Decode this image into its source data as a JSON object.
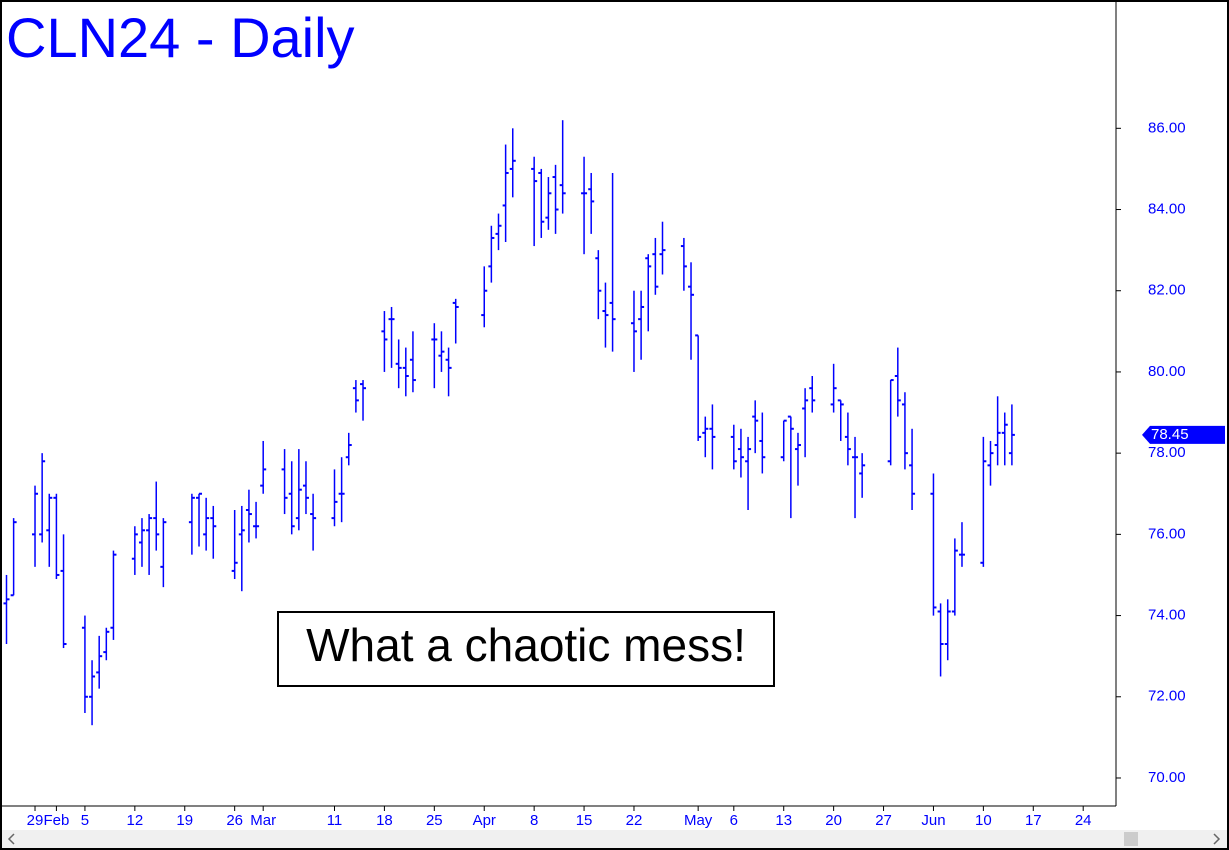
{
  "chart_data": {
    "type": "ohlc",
    "title": "CLN24 - Daily",
    "annotation": "What a chaotic mess!",
    "color": "#0000ff",
    "x": [
      -4,
      -3,
      0,
      1,
      2,
      3,
      4,
      7,
      8,
      9,
      10,
      11,
      14,
      15,
      16,
      17,
      18,
      22,
      23,
      24,
      25,
      28,
      29,
      30,
      31,
      32,
      35,
      36,
      37,
      38,
      39,
      42,
      43,
      44,
      45,
      46,
      49,
      50,
      51,
      52,
      53,
      56,
      57,
      58,
      59,
      63,
      64,
      65,
      66,
      67,
      70,
      71,
      72,
      73,
      74,
      77,
      78,
      79,
      80,
      81,
      84,
      85,
      86,
      87,
      88,
      91,
      92,
      93,
      94,
      95,
      98,
      99,
      100,
      101,
      102,
      105,
      106,
      107,
      108,
      109,
      112,
      113,
      114,
      115,
      116,
      120,
      121,
      122,
      123,
      126,
      127,
      128,
      129,
      130,
      133,
      134,
      135,
      136,
      137
    ],
    "open": [
      74.3,
      74.5,
      76.0,
      76.0,
      76.1,
      76.9,
      75.1,
      73.7,
      72.0,
      72.6,
      73.1,
      73.7,
      75.4,
      75.8,
      76.1,
      76.4,
      75.2,
      76.3,
      76.9,
      76.0,
      76.4,
      75.1,
      76.0,
      76.6,
      76.2,
      77.2,
      77.6,
      77.0,
      76.4,
      77.2,
      76.5,
      76.4,
      77.0,
      77.9,
      79.6,
      79.7,
      81.0,
      81.3,
      80.2,
      80.1,
      80.3,
      80.8,
      80.4,
      80.3,
      81.7,
      81.4,
      82.6,
      83.4,
      84.1,
      85.0,
      85.0,
      84.9,
      83.8,
      84.8,
      84.6,
      84.4,
      84.5,
      82.8,
      81.5,
      81.7,
      81.2,
      81.3,
      82.8,
      82.9,
      82.9,
      83.1,
      82.1,
      80.9,
      78.5,
      78.6,
      78.4,
      78.1,
      77.8,
      78.9,
      78.3,
      77.9,
      78.9,
      78.1,
      79.1,
      79.6,
      79.2,
      79.3,
      78.4,
      77.9,
      77.5,
      77.8,
      79.9,
      79.2,
      77.7,
      77.0,
      74.1,
      73.3,
      74.1,
      75.5,
      75.3,
      77.7,
      78.2,
      78.5,
      78.0
    ],
    "high": [
      75.0,
      76.4,
      77.2,
      78.0,
      77.0,
      77.0,
      76.0,
      74.0,
      72.9,
      73.5,
      73.7,
      75.6,
      76.2,
      76.4,
      76.5,
      77.3,
      76.4,
      77.0,
      77.0,
      76.9,
      76.7,
      76.6,
      76.7,
      77.1,
      76.8,
      78.3,
      78.1,
      77.8,
      78.1,
      77.8,
      77.0,
      77.6,
      77.9,
      78.5,
      79.8,
      79.8,
      81.5,
      81.6,
      80.8,
      80.6,
      81.0,
      81.2,
      81.0,
      80.6,
      81.8,
      82.6,
      83.6,
      83.9,
      85.6,
      86.0,
      85.3,
      85.0,
      84.8,
      85.1,
      86.2,
      85.3,
      84.9,
      83.0,
      82.2,
      84.9,
      82.0,
      82.0,
      82.9,
      83.3,
      83.7,
      83.3,
      82.7,
      80.9,
      78.9,
      79.2,
      78.7,
      78.6,
      78.4,
      79.3,
      79.0,
      78.8,
      78.9,
      78.5,
      79.6,
      79.9,
      80.2,
      79.3,
      79.0,
      78.4,
      78.0,
      79.8,
      80.6,
      79.5,
      78.6,
      77.5,
      74.3,
      74.4,
      75.9,
      76.3,
      78.4,
      78.3,
      79.4,
      79.0,
      79.2
    ],
    "low": [
      73.3,
      74.5,
      75.2,
      75.8,
      75.2,
      74.9,
      73.2,
      71.6,
      71.3,
      72.2,
      72.9,
      73.4,
      75.0,
      75.2,
      75.0,
      75.6,
      74.7,
      75.5,
      75.7,
      75.6,
      75.4,
      74.9,
      74.6,
      75.8,
      75.9,
      77.0,
      76.5,
      76.0,
      76.1,
      76.5,
      75.6,
      76.2,
      76.3,
      77.7,
      79.0,
      78.8,
      80.0,
      80.1,
      79.6,
      79.4,
      79.5,
      79.6,
      80.0,
      79.4,
      80.7,
      81.1,
      82.2,
      83.0,
      83.2,
      84.3,
      83.1,
      83.3,
      83.5,
      83.4,
      83.9,
      82.9,
      83.4,
      81.3,
      80.6,
      80.5,
      80.0,
      80.3,
      81.0,
      81.9,
      82.4,
      82.0,
      80.3,
      78.3,
      77.9,
      77.6,
      77.6,
      77.4,
      76.6,
      78.0,
      77.5,
      77.8,
      76.4,
      77.2,
      77.9,
      79.0,
      79.0,
      78.3,
      77.7,
      76.4,
      76.9,
      77.7,
      78.9,
      77.6,
      76.6,
      74.0,
      72.5,
      72.9,
      74.0,
      75.2,
      75.2,
      77.2,
      77.7,
      77.7,
      77.7
    ],
    "close": [
      74.4,
      76.3,
      77.0,
      77.8,
      76.9,
      75.0,
      73.3,
      72.0,
      72.5,
      73.0,
      73.6,
      75.5,
      76.0,
      76.1,
      76.4,
      76.0,
      76.3,
      76.9,
      77.0,
      76.4,
      76.2,
      75.3,
      76.1,
      76.5,
      76.2,
      77.6,
      76.9,
      76.2,
      77.1,
      76.9,
      76.4,
      76.8,
      77.0,
      78.2,
      79.3,
      79.6,
      80.8,
      81.3,
      80.1,
      79.9,
      79.8,
      80.8,
      80.5,
      80.1,
      81.6,
      82.0,
      83.3,
      83.6,
      84.9,
      85.2,
      84.7,
      83.7,
      84.4,
      84.0,
      84.4,
      84.4,
      84.2,
      82.0,
      81.4,
      81.3,
      81.0,
      81.6,
      82.6,
      82.1,
      83.0,
      82.6,
      81.9,
      78.4,
      78.6,
      78.4,
      77.8,
      77.9,
      78.1,
      78.8,
      77.9,
      78.8,
      78.6,
      78.2,
      79.3,
      79.3,
      79.6,
      79.2,
      78.1,
      77.9,
      77.7,
      79.8,
      79.3,
      78.0,
      77.0,
      74.2,
      73.3,
      74.1,
      75.6,
      75.5,
      77.8,
      78.0,
      78.5,
      78.7,
      78.45
    ],
    "last_price": 78.45,
    "xlim": [
      -4.35,
      151.6
    ],
    "xticks": [
      {
        "value": 0,
        "label": "29"
      },
      {
        "value": 3,
        "label": "Feb"
      },
      {
        "value": 7,
        "label": "5"
      },
      {
        "value": 14,
        "label": "12"
      },
      {
        "value": 21,
        "label": "19"
      },
      {
        "value": 28,
        "label": "26"
      },
      {
        "value": 32,
        "label": "Mar"
      },
      {
        "value": 42,
        "label": "11"
      },
      {
        "value": 49,
        "label": "18"
      },
      {
        "value": 56,
        "label": "25"
      },
      {
        "value": 63,
        "label": "Apr"
      },
      {
        "value": 70,
        "label": "8"
      },
      {
        "value": 77,
        "label": "15"
      },
      {
        "value": 84,
        "label": "22"
      },
      {
        "value": 93,
        "label": "May"
      },
      {
        "value": 98,
        "label": "6"
      },
      {
        "value": 105,
        "label": "13"
      },
      {
        "value": 112,
        "label": "20"
      },
      {
        "value": 119,
        "label": "27"
      },
      {
        "value": 126,
        "label": "Jun"
      },
      {
        "value": 133,
        "label": "10"
      },
      {
        "value": 140,
        "label": "17"
      },
      {
        "value": 147,
        "label": "24"
      }
    ],
    "ylim": [
      69.31,
      89.16
    ],
    "yticks": [
      {
        "value": 70,
        "label": "70.00"
      },
      {
        "value": 72,
        "label": "72.00"
      },
      {
        "value": 74,
        "label": "74.00"
      },
      {
        "value": 76,
        "label": "76.00"
      },
      {
        "value": 78,
        "label": "78.00"
      },
      {
        "value": 80,
        "label": "80.00"
      },
      {
        "value": 82,
        "label": "82.00"
      },
      {
        "value": 84,
        "label": "84.00"
      },
      {
        "value": 86,
        "label": "86.00"
      }
    ]
  }
}
